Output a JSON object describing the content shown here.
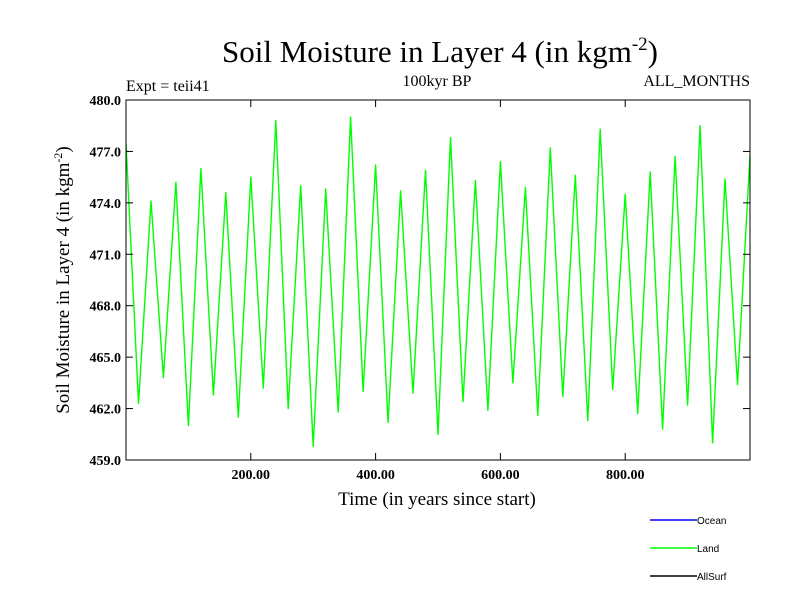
{
  "chart_data": {
    "type": "line",
    "title_main": "Soil Moisture in Layer 4 (in kgm",
    "title_sup": "-2",
    "title_close": ")",
    "subtitle_left": "Expt = teii41",
    "subtitle_center": "100kyr BP",
    "subtitle_right": "ALL_MONTHS",
    "ylabel_main": "Soil Moisture in Layer 4 (in kgm",
    "ylabel_sup": "-2",
    "ylabel_close": ")",
    "xlabel": "Time (in years since start)",
    "xlim": [
      0,
      1000
    ],
    "ylim": [
      459.0,
      480.0
    ],
    "x_ticks": [
      "200.00",
      "400.00",
      "600.00",
      "800.00"
    ],
    "x_tick_values": [
      200,
      400,
      600,
      800
    ],
    "y_ticks": [
      "459.0",
      "462.0",
      "465.0",
      "468.0",
      "471.0",
      "474.0",
      "477.0",
      "480.0"
    ],
    "y_tick_values": [
      459,
      462,
      465,
      468,
      471,
      474,
      477,
      480
    ],
    "series": [
      {
        "name": "Ocean",
        "color": "#0000ff",
        "x": [],
        "y": []
      },
      {
        "name": "Land",
        "color": "#00ff00",
        "x": [
          0,
          20,
          40,
          60,
          80,
          100,
          120,
          140,
          160,
          180,
          200,
          220,
          240,
          260,
          280,
          300,
          320,
          340,
          360,
          380,
          400,
          420,
          440,
          460,
          480,
          500,
          520,
          540,
          560,
          580,
          600,
          620,
          640,
          660,
          680,
          700,
          720,
          740,
          760,
          780,
          800,
          820,
          840,
          860,
          880,
          900,
          920,
          940,
          960,
          980,
          1000
        ],
        "y": [
          477.5,
          462.3,
          474.1,
          463.8,
          475.2,
          461.0,
          476.0,
          462.8,
          474.6,
          461.5,
          475.5,
          463.2,
          478.8,
          462.0,
          475.0,
          459.8,
          474.8,
          461.8,
          479.0,
          463.0,
          476.2,
          461.2,
          474.7,
          462.9,
          475.9,
          460.5,
          477.8,
          462.4,
          475.3,
          461.9,
          476.4,
          463.5,
          474.9,
          461.6,
          477.2,
          462.7,
          475.6,
          461.3,
          478.3,
          463.1,
          474.5,
          461.7,
          475.8,
          460.8,
          476.7,
          462.2,
          478.5,
          460.0,
          475.4,
          463.4,
          476.8
        ]
      },
      {
        "name": "AllSurf",
        "color": "#000000",
        "x": [],
        "y": []
      }
    ],
    "legend_placement": "bottom-right",
    "grid": false
  }
}
